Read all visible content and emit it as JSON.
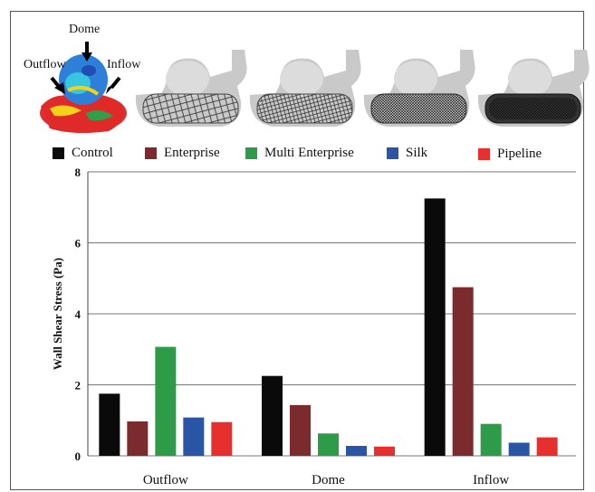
{
  "annotations": {
    "dome": "Dome",
    "outflow": "Outflow",
    "inflow": "Inflow"
  },
  "legend": [
    {
      "label": "Control",
      "color": "#0a0a0a"
    },
    {
      "label": "Enterprise",
      "color": "#7b2a2e"
    },
    {
      "label": "Multi Enterprise",
      "color": "#2e9b48"
    },
    {
      "label": "Silk",
      "color": "#2a55a5"
    },
    {
      "label": "Pipeline",
      "color": "#e5302d"
    }
  ],
  "chart_data": {
    "type": "bar",
    "categories": [
      "Outflow",
      "Dome",
      "Inflow"
    ],
    "series": [
      {
        "name": "Control",
        "values": [
          1.75,
          2.25,
          7.25
        ]
      },
      {
        "name": "Enterprise",
        "values": [
          0.97,
          1.43,
          4.75
        ]
      },
      {
        "name": "Multi Enterprise",
        "values": [
          3.07,
          0.63,
          0.9
        ]
      },
      {
        "name": "Silk",
        "values": [
          1.08,
          0.28,
          0.37
        ]
      },
      {
        "name": "Pipeline",
        "values": [
          0.95,
          0.26,
          0.52
        ]
      }
    ],
    "ylabel": "Wall Shear Stress (Pa)",
    "ylim": [
      0,
      8
    ],
    "yticks": [
      "0",
      "2",
      "4",
      "6",
      "8"
    ],
    "grid": true
  }
}
